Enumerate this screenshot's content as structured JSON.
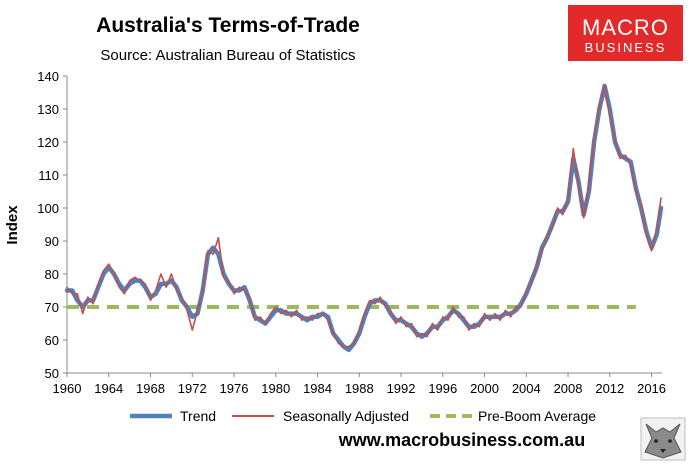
{
  "brand": {
    "logo_line1": "MACRO",
    "logo_line2": "BUSINESS",
    "logo_color": "#e22a2a",
    "website": "www.macrobusiness.com.au",
    "wolf_logo_icon": "wolf-head-icon"
  },
  "chart_data": {
    "type": "line",
    "title": "Australia's Terms-of-Trade",
    "subtitle": "Source: Australian Bureau of Statistics",
    "xlabel": "",
    "ylabel": "Index",
    "xlim": [
      1960,
      2017
    ],
    "ylim": [
      50,
      140
    ],
    "y_ticks": [
      50,
      60,
      70,
      80,
      90,
      100,
      110,
      120,
      130,
      140
    ],
    "x_ticks": [
      1960,
      1964,
      1968,
      1972,
      1976,
      1980,
      1984,
      1988,
      1992,
      1996,
      2000,
      2004,
      2008,
      2012,
      2016
    ],
    "grid": false,
    "legend": "bottom",
    "series": [
      {
        "name": "Trend",
        "color": "#4f81bd",
        "style": "solid-thick",
        "points": [
          [
            1960.0,
            75
          ],
          [
            1960.5,
            75
          ],
          [
            1961.0,
            72
          ],
          [
            1961.5,
            70
          ],
          [
            1962.0,
            72
          ],
          [
            1962.5,
            72
          ],
          [
            1963.0,
            76
          ],
          [
            1963.5,
            80
          ],
          [
            1964.0,
            82
          ],
          [
            1964.5,
            80
          ],
          [
            1965.0,
            77
          ],
          [
            1965.5,
            75
          ],
          [
            1966.0,
            77
          ],
          [
            1966.5,
            78
          ],
          [
            1967.0,
            78
          ],
          [
            1967.5,
            76
          ],
          [
            1968.0,
            73
          ],
          [
            1968.5,
            74
          ],
          [
            1969.0,
            77
          ],
          [
            1969.5,
            77
          ],
          [
            1970.0,
            78
          ],
          [
            1970.5,
            76
          ],
          [
            1971.0,
            72
          ],
          [
            1971.5,
            70
          ],
          [
            1972.0,
            67
          ],
          [
            1972.5,
            68
          ],
          [
            1973.0,
            75
          ],
          [
            1973.5,
            86
          ],
          [
            1974.0,
            88
          ],
          [
            1974.5,
            86
          ],
          [
            1975.0,
            80
          ],
          [
            1975.5,
            77
          ],
          [
            1976.0,
            75
          ],
          [
            1976.5,
            75
          ],
          [
            1977.0,
            76
          ],
          [
            1977.5,
            72
          ],
          [
            1978.0,
            67
          ],
          [
            1978.5,
            66
          ],
          [
            1979.0,
            65
          ],
          [
            1979.5,
            67
          ],
          [
            1980.0,
            69
          ],
          [
            1980.5,
            69
          ],
          [
            1981.0,
            68
          ],
          [
            1981.5,
            68
          ],
          [
            1982.0,
            68
          ],
          [
            1982.5,
            67
          ],
          [
            1983.0,
            66
          ],
          [
            1983.5,
            67
          ],
          [
            1984.0,
            67
          ],
          [
            1984.5,
            68
          ],
          [
            1985.0,
            67
          ],
          [
            1985.5,
            62
          ],
          [
            1986.0,
            60
          ],
          [
            1986.5,
            58
          ],
          [
            1987.0,
            57
          ],
          [
            1987.5,
            59
          ],
          [
            1988.0,
            62
          ],
          [
            1988.5,
            67
          ],
          [
            1989.0,
            71
          ],
          [
            1989.5,
            72
          ],
          [
            1990.0,
            72
          ],
          [
            1990.5,
            71
          ],
          [
            1991.0,
            68
          ],
          [
            1991.5,
            66
          ],
          [
            1992.0,
            66
          ],
          [
            1992.5,
            65
          ],
          [
            1993.0,
            64
          ],
          [
            1993.5,
            62
          ],
          [
            1994.0,
            61
          ],
          [
            1994.5,
            62
          ],
          [
            1995.0,
            64
          ],
          [
            1995.5,
            64
          ],
          [
            1996.0,
            66
          ],
          [
            1996.5,
            67
          ],
          [
            1997.0,
            69
          ],
          [
            1997.5,
            68
          ],
          [
            1998.0,
            66
          ],
          [
            1998.5,
            64
          ],
          [
            1999.0,
            64
          ],
          [
            1999.5,
            65
          ],
          [
            2000.0,
            67
          ],
          [
            2000.5,
            67
          ],
          [
            2001.0,
            67
          ],
          [
            2001.5,
            67
          ],
          [
            2002.0,
            68
          ],
          [
            2002.5,
            68
          ],
          [
            2003.0,
            69
          ],
          [
            2003.5,
            71
          ],
          [
            2004.0,
            74
          ],
          [
            2004.5,
            78
          ],
          [
            2005.0,
            82
          ],
          [
            2005.5,
            88
          ],
          [
            2006.0,
            91
          ],
          [
            2006.5,
            95
          ],
          [
            2007.0,
            99
          ],
          [
            2007.5,
            99
          ],
          [
            2008.0,
            102
          ],
          [
            2008.5,
            115
          ],
          [
            2009.0,
            108
          ],
          [
            2009.5,
            98
          ],
          [
            2010.0,
            105
          ],
          [
            2010.5,
            120
          ],
          [
            2011.0,
            130
          ],
          [
            2011.5,
            137
          ],
          [
            2012.0,
            130
          ],
          [
            2012.5,
            120
          ],
          [
            2013.0,
            116
          ],
          [
            2013.5,
            115
          ],
          [
            2014.0,
            114
          ],
          [
            2014.5,
            106
          ],
          [
            2015.0,
            100
          ],
          [
            2015.5,
            93
          ],
          [
            2016.0,
            88
          ],
          [
            2016.5,
            92
          ],
          [
            2016.9,
            100
          ]
        ]
      },
      {
        "name": "Seasonally Adjusted",
        "color": "#c0504d",
        "style": "solid-thin",
        "points": [
          [
            1960.0,
            76
          ],
          [
            1960.5,
            74
          ],
          [
            1961.0,
            74
          ],
          [
            1961.5,
            68
          ],
          [
            1962.0,
            73
          ],
          [
            1962.5,
            71
          ],
          [
            1963.0,
            77
          ],
          [
            1963.5,
            81
          ],
          [
            1964.0,
            83
          ],
          [
            1964.5,
            80
          ],
          [
            1965.0,
            76
          ],
          [
            1965.5,
            74
          ],
          [
            1966.0,
            78
          ],
          [
            1966.5,
            79
          ],
          [
            1967.0,
            78
          ],
          [
            1967.5,
            77
          ],
          [
            1968.0,
            72
          ],
          [
            1968.5,
            75
          ],
          [
            1969.0,
            80
          ],
          [
            1969.5,
            76
          ],
          [
            1970.0,
            80
          ],
          [
            1970.5,
            75
          ],
          [
            1971.0,
            73
          ],
          [
            1971.5,
            69
          ],
          [
            1972.0,
            63
          ],
          [
            1972.5,
            69
          ],
          [
            1973.0,
            74
          ],
          [
            1973.5,
            87
          ],
          [
            1974.0,
            86
          ],
          [
            1974.5,
            91
          ],
          [
            1975.0,
            79
          ],
          [
            1975.5,
            78
          ],
          [
            1976.0,
            74
          ],
          [
            1976.5,
            76
          ],
          [
            1977.0,
            75
          ],
          [
            1977.5,
            73
          ],
          [
            1978.0,
            66
          ],
          [
            1978.5,
            67
          ],
          [
            1979.0,
            65
          ],
          [
            1979.5,
            68
          ],
          [
            1980.0,
            70
          ],
          [
            1980.5,
            68
          ],
          [
            1981.0,
            69
          ],
          [
            1981.5,
            67
          ],
          [
            1982.0,
            69
          ],
          [
            1982.5,
            66
          ],
          [
            1983.0,
            67
          ],
          [
            1983.5,
            66
          ],
          [
            1984.0,
            68
          ],
          [
            1984.5,
            68
          ],
          [
            1985.0,
            66
          ],
          [
            1985.5,
            62
          ],
          [
            1986.0,
            59
          ],
          [
            1986.5,
            58
          ],
          [
            1987.0,
            58
          ],
          [
            1987.5,
            59
          ],
          [
            1988.0,
            63
          ],
          [
            1988.5,
            68
          ],
          [
            1989.0,
            72
          ],
          [
            1989.5,
            71
          ],
          [
            1990.0,
            73
          ],
          [
            1990.5,
            70
          ],
          [
            1991.0,
            69
          ],
          [
            1991.5,
            65
          ],
          [
            1992.0,
            67
          ],
          [
            1992.5,
            64
          ],
          [
            1993.0,
            65
          ],
          [
            1993.5,
            61
          ],
          [
            1994.0,
            62
          ],
          [
            1994.5,
            61
          ],
          [
            1995.0,
            65
          ],
          [
            1995.5,
            63
          ],
          [
            1996.0,
            67
          ],
          [
            1996.5,
            66
          ],
          [
            1997.0,
            70
          ],
          [
            1997.5,
            67
          ],
          [
            1998.0,
            67
          ],
          [
            1998.5,
            63
          ],
          [
            1999.0,
            65
          ],
          [
            1999.5,
            64
          ],
          [
            2000.0,
            68
          ],
          [
            2000.5,
            66
          ],
          [
            2001.0,
            68
          ],
          [
            2001.5,
            66
          ],
          [
            2002.0,
            69
          ],
          [
            2002.5,
            67
          ],
          [
            2003.0,
            70
          ],
          [
            2003.5,
            70
          ],
          [
            2004.0,
            75
          ],
          [
            2004.5,
            77
          ],
          [
            2005.0,
            83
          ],
          [
            2005.5,
            87
          ],
          [
            2006.0,
            92
          ],
          [
            2006.5,
            94
          ],
          [
            2007.0,
            100
          ],
          [
            2007.5,
            98
          ],
          [
            2008.0,
            103
          ],
          [
            2008.5,
            118
          ],
          [
            2009.0,
            107
          ],
          [
            2009.5,
            97
          ],
          [
            2010.0,
            107
          ],
          [
            2010.5,
            121
          ],
          [
            2011.0,
            131
          ],
          [
            2011.5,
            137
          ],
          [
            2012.0,
            128
          ],
          [
            2012.5,
            121
          ],
          [
            2013.0,
            115
          ],
          [
            2013.5,
            116
          ],
          [
            2014.0,
            113
          ],
          [
            2014.5,
            105
          ],
          [
            2015.0,
            101
          ],
          [
            2015.5,
            92
          ],
          [
            2016.0,
            87
          ],
          [
            2016.5,
            94
          ],
          [
            2016.9,
            103
          ]
        ]
      },
      {
        "name": "Pre-Boom Average",
        "color": "#9bbb59",
        "style": "dashed",
        "points": [
          [
            1960.0,
            70
          ],
          [
            2014.5,
            70
          ]
        ]
      }
    ]
  }
}
